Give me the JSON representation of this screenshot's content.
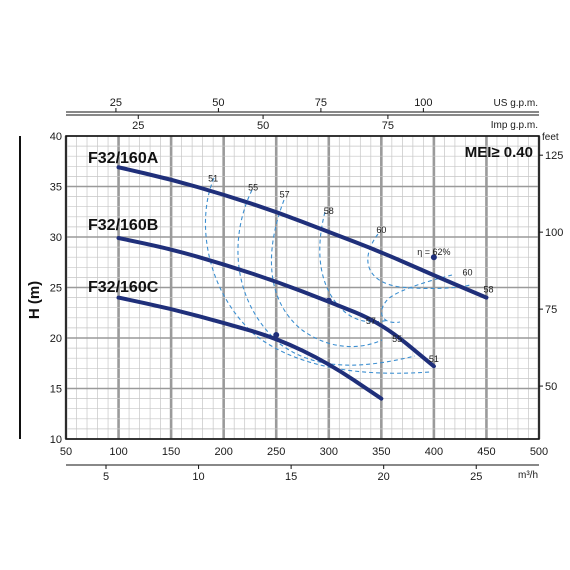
{
  "chart_data": {
    "type": "line",
    "title": "",
    "ylabel": "H (m)",
    "xlabel": "",
    "xlim": [
      50,
      500
    ],
    "ylim": [
      10,
      40
    ],
    "grid": true,
    "x_ticks": [
      "50",
      "100",
      "150",
      "200",
      "250",
      "300",
      "350",
      "400",
      "450",
      "500"
    ],
    "y_ticks": [
      "10",
      "15",
      "20",
      "25",
      "30",
      "35",
      "40"
    ],
    "x_tick_values": [
      50,
      100,
      150,
      200,
      250,
      300,
      350,
      400,
      450,
      500
    ],
    "y_tick_values": [
      10,
      15,
      20,
      25,
      30,
      35,
      40
    ],
    "secondary_axes": {
      "bottom_m3h": {
        "unit": "m³/h",
        "ticks": [
          {
            "label": "5",
            "value": 5
          },
          {
            "label": "10",
            "value": 10
          },
          {
            "label": "15",
            "value": 15
          },
          {
            "label": "20",
            "value": 20
          },
          {
            "label": "25",
            "value": 25
          }
        ]
      },
      "top_us_gpm": {
        "unit": "US g.p.m.",
        "ticks": [
          {
            "label": "25",
            "value": 25
          },
          {
            "label": "50",
            "value": 50
          },
          {
            "label": "75",
            "value": 75
          },
          {
            "label": "100",
            "value": 100
          }
        ]
      },
      "top_imp_gpm": {
        "unit": "Imp g.p.m.",
        "ticks": [
          {
            "label": "25",
            "value": 25
          },
          {
            "label": "50",
            "value": 50
          },
          {
            "label": "75",
            "value": 75
          }
        ]
      },
      "right_feet": {
        "unit": "feet",
        "ticks": [
          {
            "label": "50",
            "value": 50
          },
          {
            "label": "75",
            "value": 75
          },
          {
            "label": "100",
            "value": 100
          },
          {
            "label": "125",
            "value": 125
          }
        ]
      }
    },
    "series": [
      {
        "name": "F32/160A",
        "x": [
          100,
          150,
          200,
          250,
          300,
          350,
          400,
          450
        ],
        "y": [
          36.9,
          35.7,
          34.2,
          32.5,
          30.5,
          28.5,
          26.2,
          24.0
        ]
      },
      {
        "name": "F32/160B",
        "x": [
          100,
          150,
          200,
          250,
          300,
          350,
          400
        ],
        "y": [
          29.9,
          28.8,
          27.3,
          25.6,
          23.6,
          21.5,
          17.2
        ]
      },
      {
        "name": "F32/160C",
        "x": [
          100,
          150,
          200,
          250,
          300,
          350
        ],
        "y": [
          24.0,
          22.9,
          21.5,
          20.0,
          17.5,
          14.0
        ]
      }
    ],
    "efficiency_labels": [
      {
        "text": "51",
        "x": 190,
        "y": 35.5
      },
      {
        "text": "55",
        "x": 228,
        "y": 34.6
      },
      {
        "text": "57",
        "x": 258,
        "y": 33.9
      },
      {
        "text": "58",
        "x": 300,
        "y": 32.3
      },
      {
        "text": "60",
        "x": 350,
        "y": 30.4
      },
      {
        "text": "η = 62%",
        "x": 400,
        "y": 28.2
      },
      {
        "text": "60",
        "x": 432,
        "y": 26.2
      },
      {
        "text": "58",
        "x": 452,
        "y": 24.5
      },
      {
        "text": "57",
        "x": 340,
        "y": 21.4
      },
      {
        "text": "55",
        "x": 365,
        "y": 19.6
      },
      {
        "text": "51",
        "x": 400,
        "y": 17.6
      }
    ],
    "annotation": "MEI≥ 0.40"
  }
}
